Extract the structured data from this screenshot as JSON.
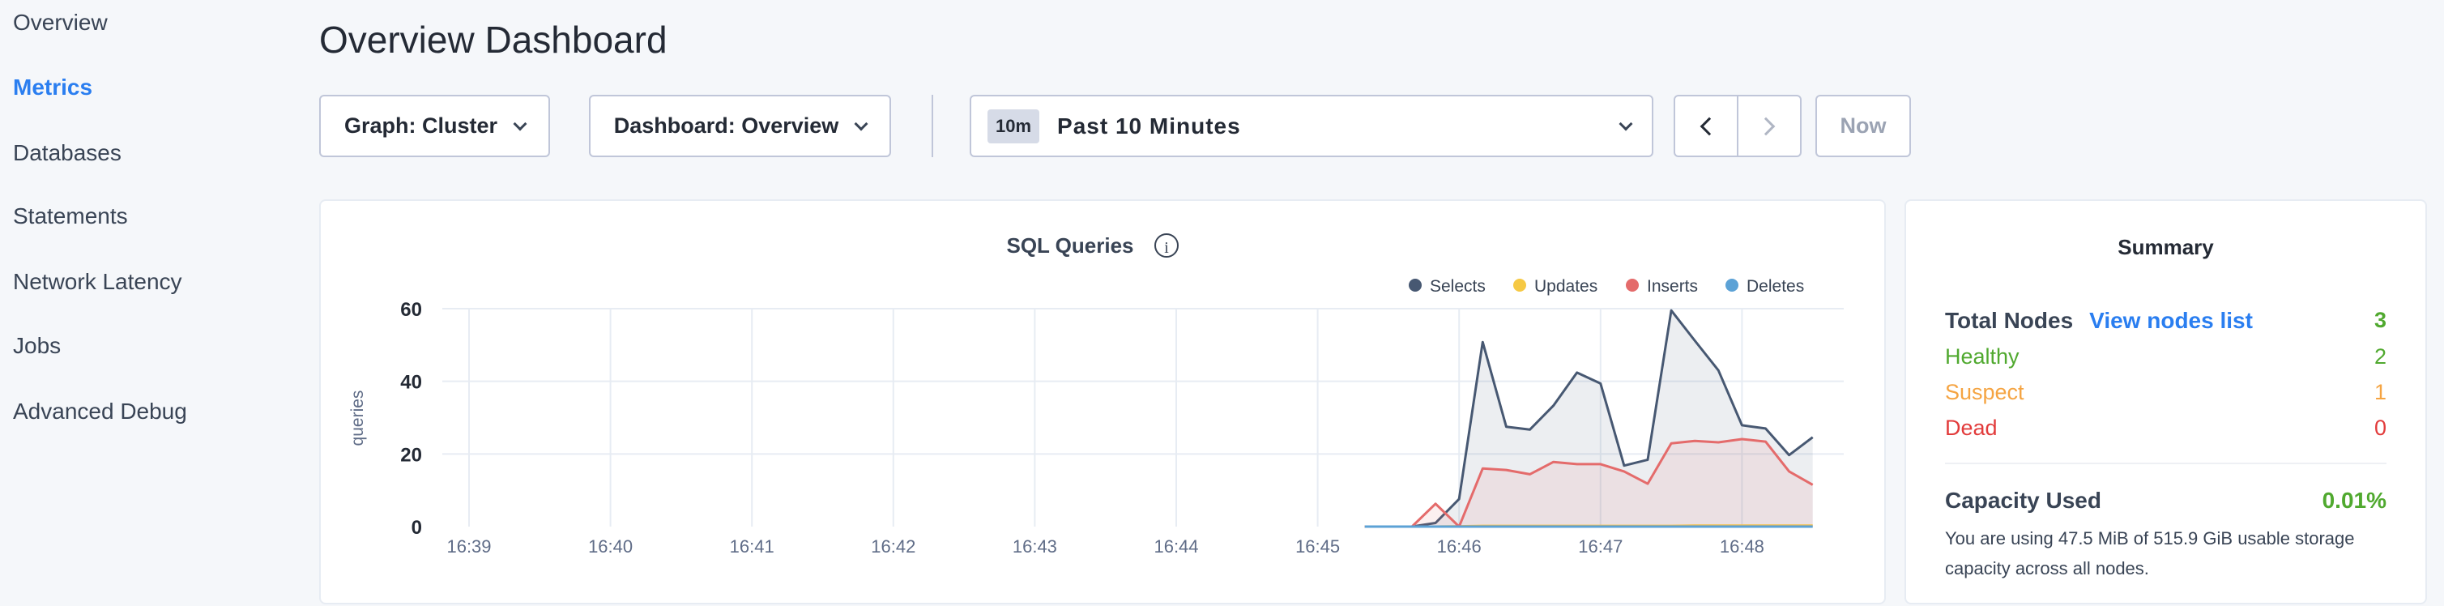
{
  "sidebar": {
    "items": [
      {
        "label": "Overview"
      },
      {
        "label": "Metrics",
        "active": true
      },
      {
        "label": "Databases"
      },
      {
        "label": "Statements"
      },
      {
        "label": "Network Latency"
      },
      {
        "label": "Jobs"
      },
      {
        "label": "Advanced Debug"
      }
    ]
  },
  "header": {
    "title": "Overview Dashboard"
  },
  "toolbar": {
    "graph": "Graph: Cluster",
    "dashboard": "Dashboard: Overview",
    "time_badge": "10m",
    "time_range": "Past 10 Minutes",
    "now": "Now"
  },
  "colors": {
    "accent": "#2a7ef0",
    "selects": "#475872",
    "updates": "#f6c944",
    "inserts": "#e46b6b",
    "deletes": "#5ca2d6",
    "healthy": "#50a92f",
    "suspect": "#f5a442",
    "dead": "#e23b3b"
  },
  "chart_data": {
    "type": "area",
    "title": "SQL Queries",
    "ylabel": "queries",
    "xlabel": "",
    "ylim": [
      0,
      60
    ],
    "yticks": [
      0,
      20,
      40,
      60
    ],
    "xticks": [
      "16:39",
      "16:40",
      "16:41",
      "16:42",
      "16:43",
      "16:44",
      "16:45",
      "16:46",
      "16:47",
      "16:48"
    ],
    "legend": "top-right",
    "grid": true,
    "x": [
      "16:45:20",
      "16:45:30",
      "16:45:40",
      "16:45:50",
      "16:46:00",
      "16:46:10",
      "16:46:20",
      "16:46:30",
      "16:46:40",
      "16:46:50",
      "16:47:00",
      "16:47:10",
      "16:47:20",
      "16:47:30",
      "16:47:40",
      "16:47:50",
      "16:48:00",
      "16:48:10",
      "16:48:20",
      "16:48:30"
    ],
    "series": [
      {
        "name": "Selects",
        "values": [
          0,
          0,
          0,
          1,
          7.6,
          50.8,
          27.5,
          26.7,
          33.3,
          42.4,
          39.4,
          16.8,
          18.4,
          59.5,
          51.2,
          43,
          27.9,
          27,
          19.7,
          24.6
        ]
      },
      {
        "name": "Updates",
        "values": [
          0,
          0,
          0,
          0,
          0.1,
          0.2,
          0.2,
          0.2,
          0.2,
          0.2,
          0.2,
          0.2,
          0.2,
          0.2,
          0.3,
          0.3,
          0.3,
          0.3,
          0.3,
          0.3
        ]
      },
      {
        "name": "Inserts",
        "values": [
          0,
          0,
          0,
          6.3,
          0,
          16,
          15.6,
          14.4,
          17.8,
          17.2,
          17.2,
          15.2,
          11.8,
          22.9,
          23.6,
          23.2,
          24.1,
          23.4,
          15.2,
          11.5
        ]
      },
      {
        "name": "Deletes",
        "values": [
          0,
          0,
          0,
          0,
          0,
          0,
          0,
          0,
          0,
          0,
          0,
          0,
          0,
          0,
          0,
          0,
          0,
          0,
          0,
          0
        ]
      }
    ]
  },
  "summary": {
    "title": "Summary",
    "total_label": "Total Nodes",
    "view_link": "View nodes list",
    "total": "3",
    "healthy_label": "Healthy",
    "healthy": "2",
    "suspect_label": "Suspect",
    "suspect": "1",
    "dead_label": "Dead",
    "dead": "0",
    "capacity_label": "Capacity Used",
    "capacity": "0.01%",
    "capacity_text_1": "You are using 47.5 MiB of 515.9 GiB usable storage",
    "capacity_text_2": "capacity across all nodes."
  }
}
